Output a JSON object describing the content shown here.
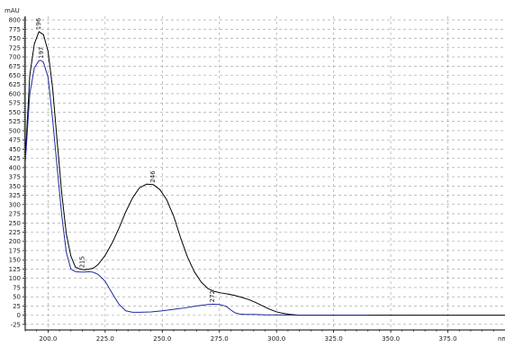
{
  "chart_data": {
    "type": "line",
    "xlabel": "nm",
    "ylabel": "mAU",
    "xlim": [
      190,
      400
    ],
    "ylim": [
      -40,
      810
    ],
    "grid": true,
    "x_ticks": [
      {
        "value": 200,
        "label": "200.0"
      },
      {
        "value": 225,
        "label": "225.0"
      },
      {
        "value": 250,
        "label": "250.0"
      },
      {
        "value": 275,
        "label": "275.0"
      },
      {
        "value": 300,
        "label": "300.0"
      },
      {
        "value": 325,
        "label": "325.0"
      },
      {
        "value": 350,
        "label": "350.0"
      },
      {
        "value": 375,
        "label": "375.0"
      }
    ],
    "y_ticks": [
      -25,
      0,
      25,
      50,
      75,
      100,
      125,
      150,
      175,
      200,
      225,
      250,
      275,
      300,
      325,
      350,
      375,
      400,
      425,
      450,
      475,
      500,
      525,
      550,
      575,
      600,
      625,
      650,
      675,
      700,
      725,
      750,
      775,
      800
    ],
    "series": [
      {
        "color": "#000000",
        "x": [
          190,
          192,
          194,
          196,
          198,
          200,
          202,
          204,
          206,
          208,
          210,
          212,
          214,
          216,
          218,
          220,
          222,
          225,
          228,
          231,
          234,
          237,
          240,
          243,
          246,
          249,
          252,
          255,
          258,
          261,
          264,
          267,
          270,
          273,
          276,
          279,
          282,
          285,
          288,
          291,
          294,
          297,
          300,
          303,
          306,
          310,
          315,
          320,
          330,
          340,
          350,
          360,
          370,
          380,
          390,
          400
        ],
        "y": [
          420,
          650,
          735,
          768,
          760,
          715,
          615,
          470,
          330,
          220,
          160,
          130,
          125,
          123,
          125,
          128,
          138,
          162,
          195,
          235,
          280,
          318,
          345,
          355,
          354,
          340,
          312,
          268,
          210,
          158,
          118,
          90,
          72,
          64,
          60,
          57,
          53,
          48,
          42,
          34,
          25,
          16,
          9,
          5,
          2,
          0,
          0,
          0,
          0,
          0,
          0,
          0,
          0,
          0,
          0,
          0
        ]
      },
      {
        "color": "#1f2aa0",
        "x": [
          190,
          192,
          194,
          196,
          197,
          198,
          200,
          202,
          204,
          206,
          208,
          210,
          212,
          214,
          216,
          218,
          220,
          222,
          225,
          228,
          231,
          234,
          237,
          240,
          245,
          250,
          255,
          260,
          265,
          270,
          272,
          275,
          278,
          280,
          282,
          284,
          286,
          290,
          295,
          300,
          310,
          320,
          340
        ],
        "y": [
          410,
          600,
          670,
          690,
          690,
          685,
          645,
          530,
          400,
          270,
          170,
          125,
          118,
          117,
          117,
          118,
          116,
          110,
          92,
          60,
          30,
          12,
          8,
          8,
          9,
          12,
          16,
          20,
          25,
          29,
          30,
          29,
          24,
          14,
          6,
          3,
          2,
          2,
          1,
          1,
          0,
          0,
          0
        ]
      }
    ],
    "peak_labels": [
      {
        "text": "196",
        "x": 196,
        "y": 768
      },
      {
        "text": "197",
        "x": 197,
        "y": 690
      },
      {
        "text": "215",
        "x": 215,
        "y": 123
      },
      {
        "text": "246",
        "x": 246,
        "y": 354
      },
      {
        "text": "272",
        "x": 272,
        "y": 30
      }
    ]
  }
}
